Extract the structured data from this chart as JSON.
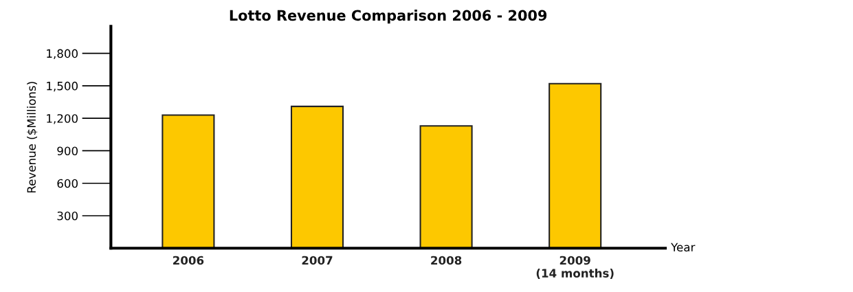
{
  "chart_data": {
    "type": "bar",
    "title": "Lotto Revenue Comparison 2006 - 2009",
    "categories": [
      "2006",
      "2007",
      "2008",
      "2009\n(14 months)"
    ],
    "values": [
      1230,
      1310,
      1130,
      1520
    ],
    "color": "#fdc800",
    "xlabel": "Year",
    "ylabel": "Revenue ($Millions)",
    "ylim": [
      0,
      2050
    ],
    "yticks": [
      {
        "value": 300,
        "label": "300"
      },
      {
        "value": 600,
        "label": "600"
      },
      {
        "value": 900,
        "label": "900"
      },
      {
        "value": 1200,
        "label": "1,200"
      },
      {
        "value": 1500,
        "label": "1,500"
      },
      {
        "value": 1800,
        "label": "1,800"
      }
    ]
  }
}
